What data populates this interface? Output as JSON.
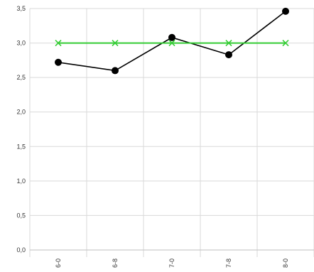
{
  "chart_data": {
    "type": "line",
    "title": "",
    "xlabel": "",
    "ylabel": "",
    "categories": [
      "6-0",
      "6-8",
      "7-0",
      "7-8",
      "8-0"
    ],
    "ylim": [
      0,
      3.5
    ],
    "yticks": [
      0.0,
      0.5,
      1.0,
      1.5,
      2.0,
      2.5,
      3.0,
      3.5
    ],
    "ytick_labels": [
      "0,0",
      "0,5",
      "1,0",
      "1,5",
      "2,0",
      "2,5",
      "3,0",
      "3,5"
    ],
    "grid": true,
    "legend": "none",
    "series": [
      {
        "values": [
          2.72,
          2.6,
          3.08,
          2.83,
          3.46
        ],
        "color": "#000000",
        "marker": "circle"
      },
      {
        "values": [
          3.0,
          3.0,
          3.0,
          3.0,
          3.0
        ],
        "color": "#33cc33",
        "marker": "x"
      }
    ]
  }
}
